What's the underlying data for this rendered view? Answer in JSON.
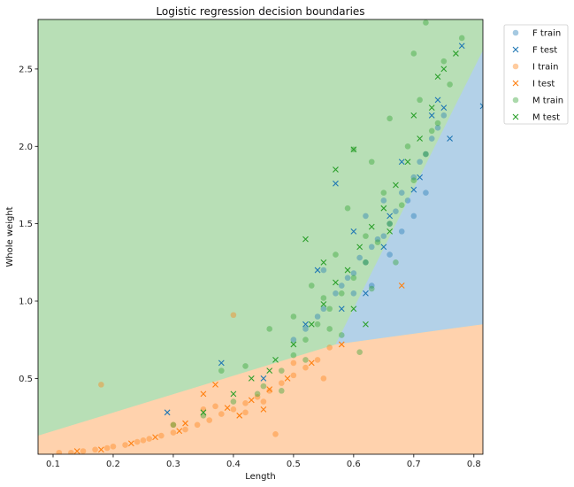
{
  "chart_data": {
    "type": "scatter",
    "title": "Logistic regression decision boundaries",
    "xlabel": "Length",
    "ylabel": "Whole weight",
    "xlim": [
      0.075,
      0.815
    ],
    "ylim": [
      0.01,
      2.82
    ],
    "x_ticks": [
      "0.1",
      "0.2",
      "0.3",
      "0.4",
      "0.5",
      "0.6",
      "0.7",
      "0.8"
    ],
    "y_ticks": [
      "0.5",
      "1.0",
      "1.5",
      "2.0",
      "2.5"
    ],
    "grid": false,
    "legend_position": "outside-top-right",
    "colors": {
      "F": "#1f77b4",
      "I": "#ff7f0e",
      "M": "#2ca02c",
      "region_F": "#b3d1e8",
      "region_I": "#ffd2ad",
      "region_M": "#b8dfb6"
    },
    "decision_regions": [
      {
        "class": "I",
        "boundary": [
          [
            0.075,
            0.13
          ],
          [
            0.57,
            0.72
          ],
          [
            0.815,
            0.85
          ]
        ]
      },
      {
        "class": "F",
        "boundary": [
          [
            0.57,
            0.72
          ],
          [
            0.815,
            2.62
          ]
        ]
      }
    ],
    "series": [
      {
        "name": "F train",
        "marker": "o",
        "color": "#1f77b4",
        "points": [
          [
            0.52,
            0.82
          ],
          [
            0.55,
            0.95
          ],
          [
            0.57,
            1.05
          ],
          [
            0.6,
            1.18
          ],
          [
            0.62,
            1.25
          ],
          [
            0.63,
            1.35
          ],
          [
            0.65,
            1.42
          ],
          [
            0.66,
            1.5
          ],
          [
            0.67,
            1.58
          ],
          [
            0.68,
            1.7
          ],
          [
            0.7,
            1.8
          ],
          [
            0.72,
            1.95
          ],
          [
            0.73,
            2.05
          ],
          [
            0.75,
            2.2
          ],
          [
            0.58,
            1.1
          ],
          [
            0.61,
            1.28
          ],
          [
            0.64,
            1.4
          ],
          [
            0.69,
            1.65
          ],
          [
            0.71,
            1.9
          ],
          [
            0.74,
            2.12
          ],
          [
            0.55,
            1.2
          ],
          [
            0.6,
            1.05
          ],
          [
            0.62,
            1.55
          ],
          [
            0.66,
            1.3
          ],
          [
            0.5,
            0.75
          ],
          [
            0.54,
            0.9
          ],
          [
            0.59,
            1.15
          ],
          [
            0.63,
            1.1
          ],
          [
            0.65,
            1.65
          ],
          [
            0.68,
            1.45
          ],
          [
            0.7,
            1.55
          ],
          [
            0.72,
            1.7
          ]
        ]
      },
      {
        "name": "F test",
        "marker": "x",
        "color": "#1f77b4",
        "points": [
          [
            0.29,
            0.28
          ],
          [
            0.38,
            0.6
          ],
          [
            0.54,
            1.2
          ],
          [
            0.57,
            1.76
          ],
          [
            0.6,
            1.45
          ],
          [
            0.65,
            1.35
          ],
          [
            0.7,
            1.72
          ],
          [
            0.73,
            2.2
          ],
          [
            0.75,
            2.25
          ],
          [
            0.78,
            2.65
          ],
          [
            0.815,
            2.26
          ],
          [
            0.68,
            1.9
          ],
          [
            0.62,
            1.05
          ],
          [
            0.58,
            0.95
          ],
          [
            0.52,
            0.85
          ],
          [
            0.45,
            0.5
          ],
          [
            0.66,
            1.55
          ],
          [
            0.71,
            1.8
          ],
          [
            0.74,
            2.3
          ],
          [
            0.76,
            2.05
          ]
        ]
      },
      {
        "name": "I train",
        "marker": "o",
        "color": "#ff7f0e",
        "points": [
          [
            0.11,
            0.02
          ],
          [
            0.13,
            0.02
          ],
          [
            0.15,
            0.03
          ],
          [
            0.17,
            0.04
          ],
          [
            0.19,
            0.05
          ],
          [
            0.2,
            0.06
          ],
          [
            0.22,
            0.07
          ],
          [
            0.24,
            0.09
          ],
          [
            0.26,
            0.11
          ],
          [
            0.28,
            0.13
          ],
          [
            0.3,
            0.15
          ],
          [
            0.32,
            0.17
          ],
          [
            0.34,
            0.2
          ],
          [
            0.36,
            0.23
          ],
          [
            0.38,
            0.27
          ],
          [
            0.4,
            0.3
          ],
          [
            0.42,
            0.34
          ],
          [
            0.44,
            0.38
          ],
          [
            0.46,
            0.42
          ],
          [
            0.48,
            0.47
          ],
          [
            0.5,
            0.52
          ],
          [
            0.52,
            0.57
          ],
          [
            0.54,
            0.62
          ],
          [
            0.56,
            0.7
          ],
          [
            0.18,
            0.46
          ],
          [
            0.4,
            0.91
          ],
          [
            0.47,
            0.14
          ],
          [
            0.35,
            0.3
          ],
          [
            0.45,
            0.35
          ],
          [
            0.5,
            0.6
          ],
          [
            0.55,
            0.5
          ],
          [
            0.25,
            0.1
          ],
          [
            0.3,
            0.2
          ],
          [
            0.42,
            0.28
          ],
          [
            0.37,
            0.32
          ]
        ]
      },
      {
        "name": "I test",
        "marker": "x",
        "color": "#ff7f0e",
        "points": [
          [
            0.14,
            0.03
          ],
          [
            0.18,
            0.04
          ],
          [
            0.23,
            0.08
          ],
          [
            0.27,
            0.12
          ],
          [
            0.31,
            0.16
          ],
          [
            0.35,
            0.4
          ],
          [
            0.37,
            0.46
          ],
          [
            0.32,
            0.21
          ],
          [
            0.39,
            0.31
          ],
          [
            0.43,
            0.36
          ],
          [
            0.46,
            0.43
          ],
          [
            0.49,
            0.5
          ],
          [
            0.53,
            0.6
          ],
          [
            0.58,
            0.72
          ],
          [
            0.68,
            1.1
          ],
          [
            0.41,
            0.26
          ],
          [
            0.45,
            0.3
          ]
        ]
      },
      {
        "name": "M train",
        "marker": "o",
        "color": "#2ca02c",
        "points": [
          [
            0.3,
            0.2
          ],
          [
            0.35,
            0.26
          ],
          [
            0.4,
            0.35
          ],
          [
            0.45,
            0.45
          ],
          [
            0.48,
            0.55
          ],
          [
            0.5,
            0.65
          ],
          [
            0.52,
            0.75
          ],
          [
            0.54,
            0.85
          ],
          [
            0.56,
            0.95
          ],
          [
            0.58,
            1.05
          ],
          [
            0.6,
            1.15
          ],
          [
            0.62,
            1.25
          ],
          [
            0.64,
            1.38
          ],
          [
            0.66,
            1.5
          ],
          [
            0.68,
            1.62
          ],
          [
            0.7,
            1.78
          ],
          [
            0.72,
            1.95
          ],
          [
            0.74,
            2.15
          ],
          [
            0.76,
            2.4
          ],
          [
            0.78,
            2.7
          ],
          [
            0.55,
            1.02
          ],
          [
            0.57,
            1.3
          ],
          [
            0.6,
            1.98
          ],
          [
            0.62,
            1.42
          ],
          [
            0.65,
            1.7
          ],
          [
            0.67,
            1.25
          ],
          [
            0.69,
            2.0
          ],
          [
            0.71,
            2.3
          ],
          [
            0.73,
            2.1
          ],
          [
            0.75,
            2.55
          ],
          [
            0.5,
            0.9
          ],
          [
            0.53,
            1.1
          ],
          [
            0.58,
            0.78
          ],
          [
            0.61,
            0.67
          ],
          [
            0.42,
            0.58
          ],
          [
            0.38,
            0.55
          ],
          [
            0.46,
            0.82
          ],
          [
            0.59,
            1.6
          ],
          [
            0.63,
            1.9
          ],
          [
            0.66,
            2.18
          ],
          [
            0.7,
            2.6
          ],
          [
            0.72,
            2.8
          ],
          [
            0.63,
            1.08
          ],
          [
            0.56,
            0.82
          ],
          [
            0.52,
            0.62
          ],
          [
            0.48,
            0.42
          ],
          [
            0.44,
            0.4
          ]
        ]
      },
      {
        "name": "M test",
        "marker": "x",
        "color": "#2ca02c",
        "points": [
          [
            0.35,
            0.28
          ],
          [
            0.4,
            0.4
          ],
          [
            0.43,
            0.5
          ],
          [
            0.47,
            0.62
          ],
          [
            0.5,
            0.72
          ],
          [
            0.53,
            0.85
          ],
          [
            0.55,
            0.98
          ],
          [
            0.57,
            1.12
          ],
          [
            0.59,
            1.2
          ],
          [
            0.61,
            1.35
          ],
          [
            0.63,
            1.48
          ],
          [
            0.65,
            1.6
          ],
          [
            0.67,
            1.75
          ],
          [
            0.69,
            1.9
          ],
          [
            0.71,
            2.05
          ],
          [
            0.73,
            2.25
          ],
          [
            0.75,
            2.5
          ],
          [
            0.77,
            2.6
          ],
          [
            0.57,
            1.85
          ],
          [
            0.6,
            1.98
          ],
          [
            0.52,
            1.4
          ],
          [
            0.55,
            1.25
          ],
          [
            0.6,
            0.95
          ],
          [
            0.62,
            0.85
          ],
          [
            0.46,
            0.55
          ],
          [
            0.66,
            1.45
          ],
          [
            0.7,
            2.2
          ],
          [
            0.74,
            2.45
          ]
        ]
      }
    ]
  }
}
